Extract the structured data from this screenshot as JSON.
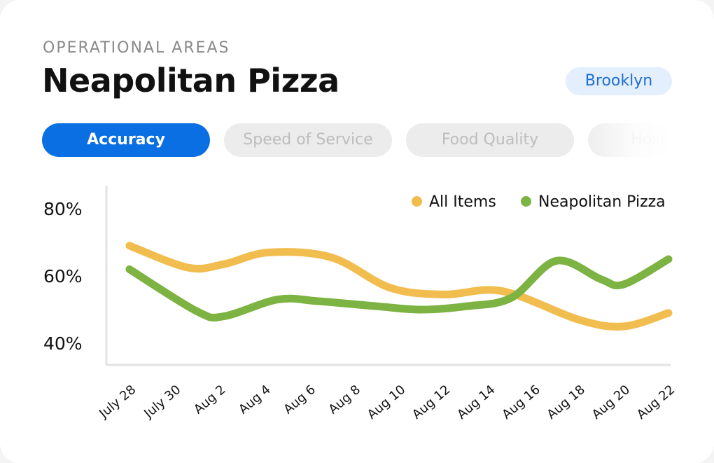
{
  "header": {
    "eyebrow": "OPERATIONAL AREAS",
    "title": "Neapolitan Pizza",
    "location_badge": "Brooklyn"
  },
  "tabs": [
    {
      "label": "Accuracy",
      "active": true
    },
    {
      "label": "Speed of Service",
      "active": false
    },
    {
      "label": "Food Quality",
      "active": false
    },
    {
      "label": "Hospitality",
      "active": false
    }
  ],
  "colors": {
    "all_items": "#f2bd4f",
    "neapolitan": "#7cb342",
    "accent": "#0a6fe3"
  },
  "chart_data": {
    "type": "line",
    "title": "",
    "xlabel": "",
    "ylabel": "",
    "ylim": [
      35,
      85
    ],
    "y_ticks": [
      "40%",
      "60%",
      "80%"
    ],
    "y_tick_values": [
      40,
      60,
      80
    ],
    "x_tick_labels": [
      "July 28",
      "July 30",
      "Aug 2",
      "Aug 4",
      "Aug 6",
      "Aug 8",
      "Aug 10",
      "Aug 12",
      "Aug 14",
      "Aug 16",
      "Aug 18",
      "Aug 20",
      "Aug 22"
    ],
    "legend_position": "top-right",
    "grid": false,
    "series": [
      {
        "name": "All Items",
        "color": "#f2bd4f",
        "x": [
          0,
          1.3,
          2.1,
          3.1,
          4.5,
          5.8,
          7.0,
          8.3,
          10.0,
          11.0,
          12.0
        ],
        "values": [
          69,
          62.5,
          63.5,
          67,
          65.5,
          56.5,
          54.5,
          55.5,
          47,
          45,
          49
        ]
      },
      {
        "name": "Neapolitan Pizza",
        "color": "#7cb342",
        "x": [
          0,
          1.5,
          2.1,
          3.3,
          4.2,
          5.5,
          6.5,
          7.5,
          8.5,
          9.5,
          10.5,
          11.0,
          12.0
        ],
        "values": [
          62,
          49.5,
          48,
          53,
          52.5,
          51,
          50,
          51,
          53.5,
          64.5,
          59,
          57.5,
          65
        ]
      }
    ]
  }
}
